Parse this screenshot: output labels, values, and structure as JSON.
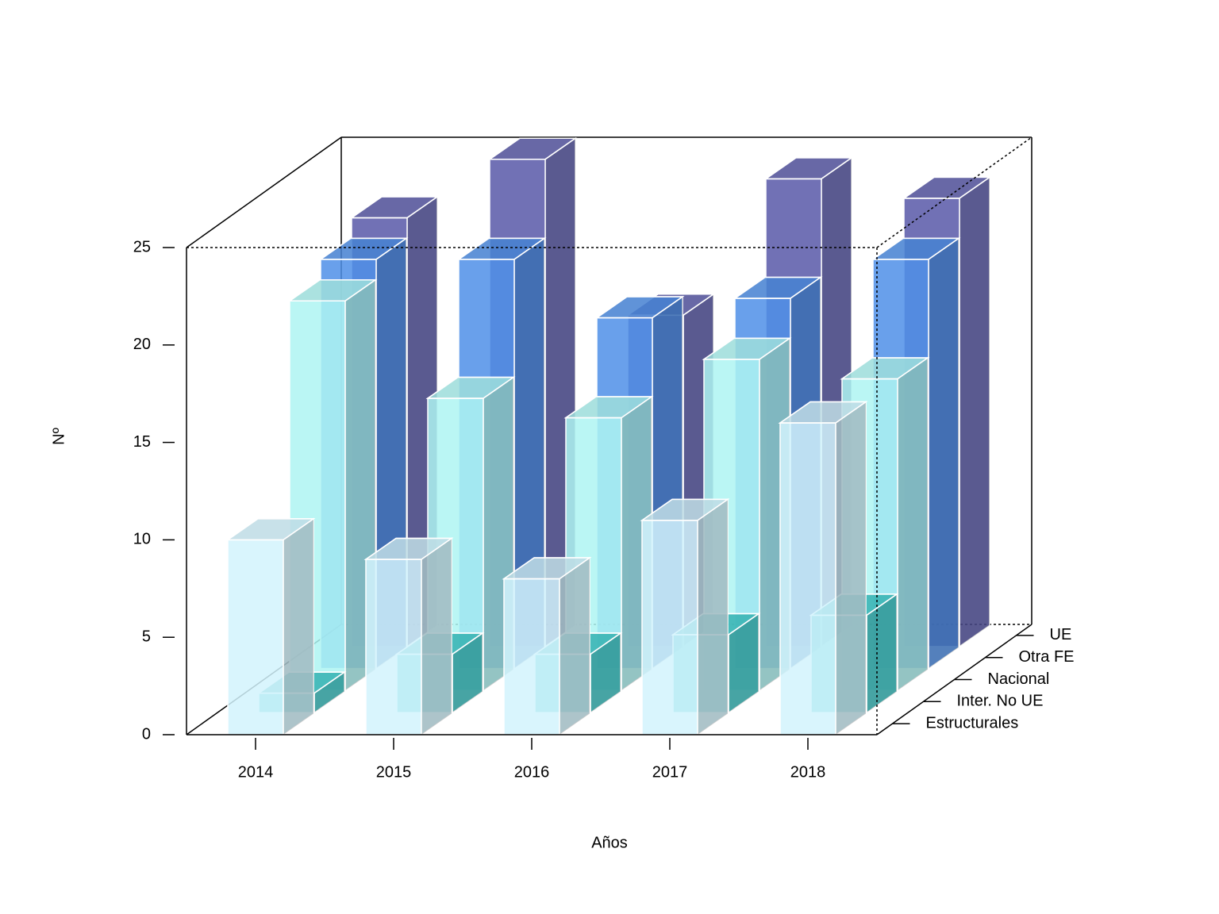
{
  "chart_data": {
    "type": "bar3d",
    "xlabel": "Años",
    "ylabel": "Nº",
    "categories": [
      "2014",
      "2015",
      "2016",
      "2017",
      "2018"
    ],
    "series": [
      {
        "name": "Estructurales",
        "color": "#d2f3fd",
        "values": [
          10,
          9,
          8,
          11,
          16
        ]
      },
      {
        "name": "Inter. No UE",
        "color": "#3cc4c4",
        "values": [
          1,
          3,
          3,
          4,
          5
        ]
      },
      {
        "name": "Nacional",
        "color": "#aef4f2",
        "values": [
          20,
          15,
          14,
          17,
          16
        ]
      },
      {
        "name": "Otra FE",
        "color": "#4f8fe8",
        "values": [
          21,
          21,
          18,
          19,
          21
        ]
      },
      {
        "name": "UE",
        "color": "#5858a8",
        "values": [
          22,
          25,
          17,
          24,
          23
        ]
      }
    ],
    "ylim": [
      0,
      25
    ],
    "yticks": [
      0,
      5,
      10,
      15,
      20,
      25
    ]
  }
}
